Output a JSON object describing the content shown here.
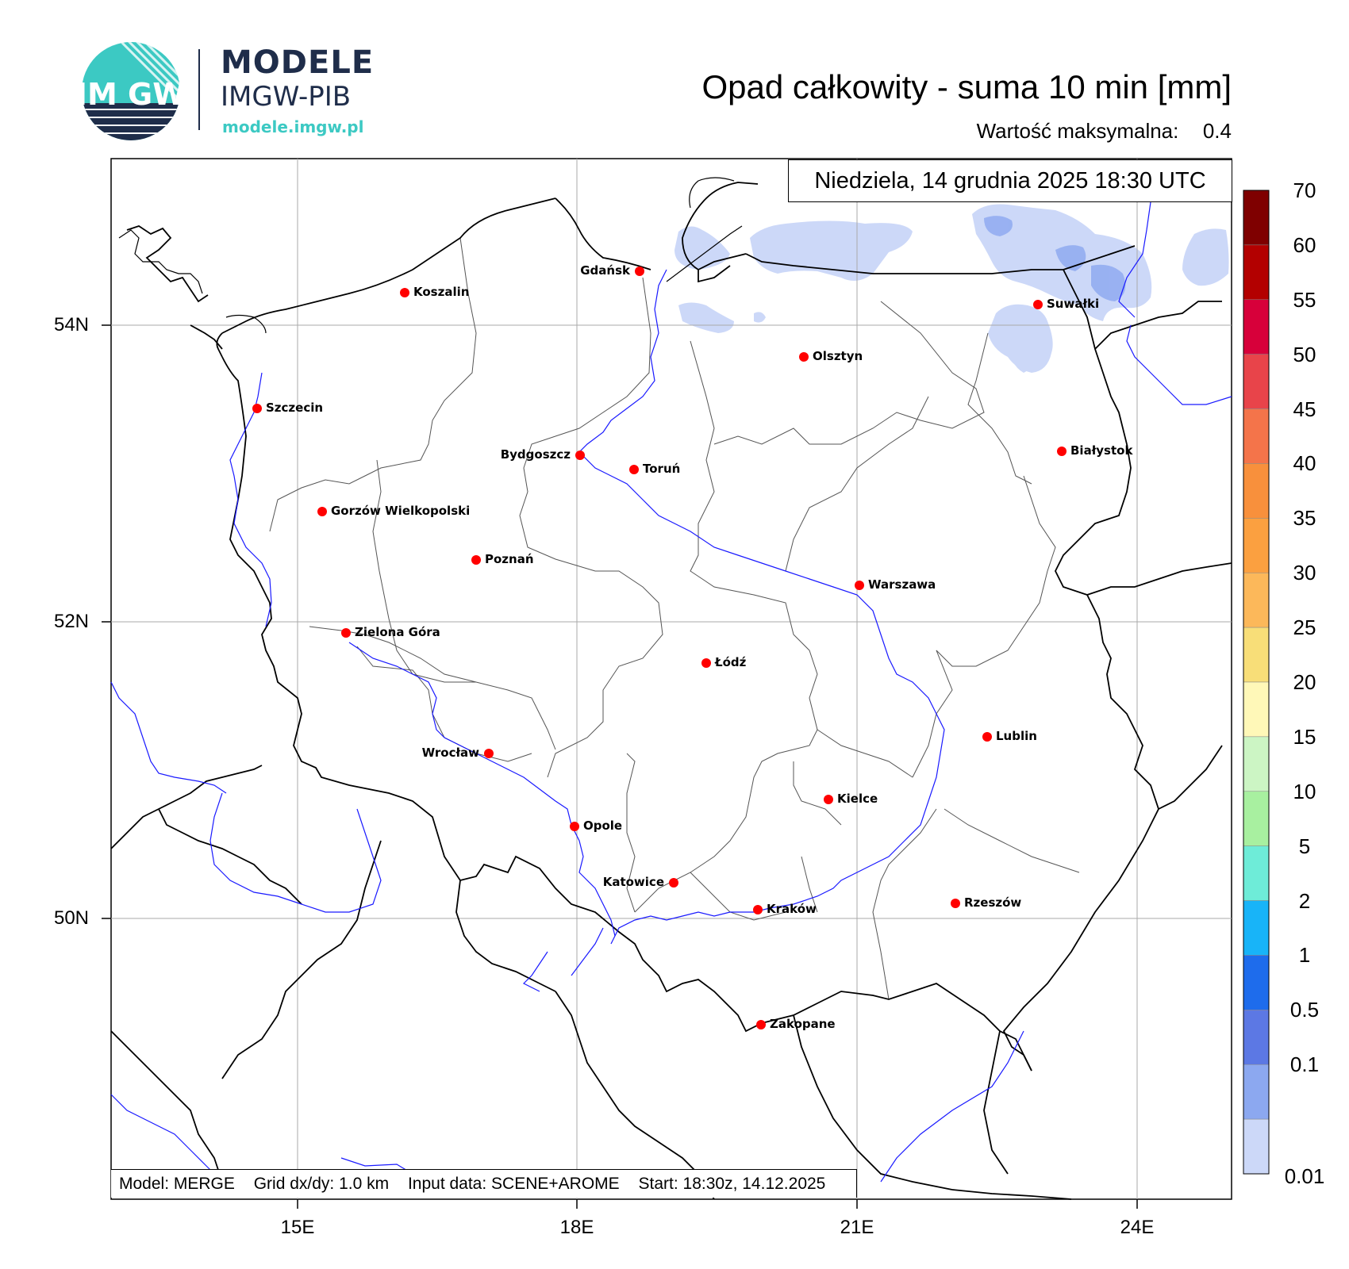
{
  "logo": {
    "title": "MODELE",
    "subtitle": "IMGW-PIB",
    "url": "modele.imgw.pl",
    "circle_text": "IM GW",
    "colors": {
      "teal": "#3cc9c3",
      "navy": "#1f2d4a"
    }
  },
  "header": {
    "title": "Opad całkowity - suma 10 min [mm]",
    "max_label": "Wartość maksymalna:",
    "max_value": "0.4"
  },
  "map": {
    "date": "Niedziela, 14 grudnia 2025 18:30 UTC",
    "info": {
      "model": "Model: MERGE",
      "grid": "Grid dx/dy: 1.0 km",
      "input": "Input data: SCENE+AROME",
      "start": "Start: 18:30z, 14.12.2025"
    },
    "lat_labels": [
      "54N",
      "52N",
      "50N"
    ],
    "lon_labels": [
      "15E",
      "18E",
      "21E",
      "24E"
    ],
    "cities": [
      {
        "name": "Gdańsk",
        "label_side": "left"
      },
      {
        "name": "Koszalin",
        "label_side": "right"
      },
      {
        "name": "Suwałki",
        "label_side": "right"
      },
      {
        "name": "Olsztyn",
        "label_side": "right"
      },
      {
        "name": "Szczecin",
        "label_side": "right"
      },
      {
        "name": "Białystok",
        "label_side": "right"
      },
      {
        "name": "Bydgoszcz",
        "label_side": "left"
      },
      {
        "name": "Toruń",
        "label_side": "right"
      },
      {
        "name": "Gorzów Wielkopolski",
        "label_side": "right"
      },
      {
        "name": "Poznań",
        "label_side": "right"
      },
      {
        "name": "Warszawa",
        "label_side": "right"
      },
      {
        "name": "Zielona Góra",
        "label_side": "right"
      },
      {
        "name": "Łódź",
        "label_side": "right"
      },
      {
        "name": "Lublin",
        "label_side": "right"
      },
      {
        "name": "Wrocław",
        "label_side": "left"
      },
      {
        "name": "Kielce",
        "label_side": "right"
      },
      {
        "name": "Opole",
        "label_side": "right"
      },
      {
        "name": "Katowice",
        "label_side": "left"
      },
      {
        "name": "Kraków",
        "label_side": "right"
      },
      {
        "name": "Rzeszów",
        "label_side": "right"
      },
      {
        "name": "Zakopane",
        "label_side": "right"
      }
    ],
    "colors": {
      "border": "#000000",
      "river": "#1a1aff",
      "admin": "#555555",
      "city_dot": "#ff0000",
      "grid": "#aaaaaa"
    }
  },
  "colorbar": {
    "labels": [
      "70",
      "60",
      "55",
      "50",
      "45",
      "40",
      "35",
      "30",
      "25",
      "20",
      "15",
      "10",
      "5",
      "2",
      "1",
      "0.5",
      "0.1",
      "0.01"
    ],
    "colors": [
      "#7f0000",
      "#b30000",
      "#d7003a",
      "#e8444a",
      "#f4744a",
      "#f8903c",
      "#fba040",
      "#fcb85a",
      "#f8de78",
      "#fff8b8",
      "#ccf5c4",
      "#a8f0a0",
      "#6eecd8",
      "#18b4f8",
      "#1e6cec",
      "#5c78e4",
      "#8ca8f0",
      "#ccd8f8"
    ]
  }
}
